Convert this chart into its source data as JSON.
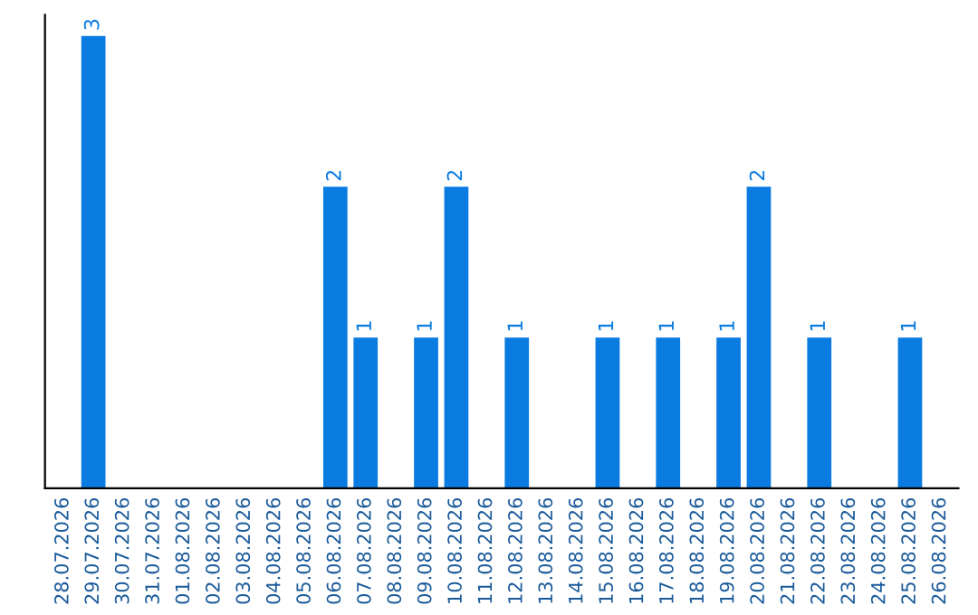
{
  "chart_data": {
    "type": "bar",
    "categories": [
      "28.07.2026",
      "29.07.2026",
      "30.07.2026",
      "31.07.2026",
      "01.08.2026",
      "02.08.2026",
      "03.08.2026",
      "04.08.2026",
      "05.08.2026",
      "06.08.2026",
      "07.08.2026",
      "08.08.2026",
      "09.08.2026",
      "10.08.2026",
      "11.08.2026",
      "12.08.2026",
      "13.08.2026",
      "14.08.2026",
      "15.08.2026",
      "16.08.2026",
      "17.08.2026",
      "18.08.2026",
      "19.08.2026",
      "20.08.2026",
      "21.08.2026",
      "22.08.2026",
      "23.08.2026",
      "24.08.2026",
      "25.08.2026",
      "26.08.2026"
    ],
    "values": [
      0,
      3,
      0,
      0,
      0,
      0,
      0,
      0,
      0,
      2,
      1,
      0,
      1,
      2,
      0,
      1,
      0,
      0,
      1,
      0,
      1,
      0,
      1,
      2,
      0,
      1,
      0,
      0,
      1,
      0
    ],
    "value_labels": [
      null,
      "3",
      null,
      null,
      null,
      null,
      null,
      null,
      null,
      "2",
      "1",
      null,
      "1",
      "2",
      null,
      "1",
      null,
      null,
      "1",
      null,
      "1",
      null,
      "1",
      "2",
      null,
      "1",
      null,
      null,
      "1",
      null
    ],
    "color": "#0a7be0",
    "ylim": [
      0,
      3.14
    ],
    "tick_labels": "x",
    "grid": false,
    "legend": false
  }
}
